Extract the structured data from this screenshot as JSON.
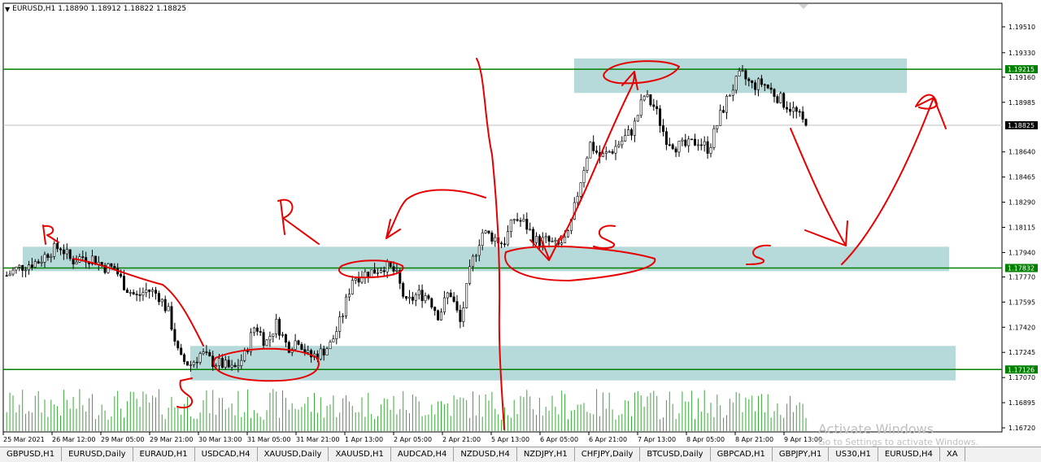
{
  "chart": {
    "symbol_label": "EURUSD,H1",
    "ohlc": [
      "1.18890",
      "1.18912",
      "1.18822",
      "1.18825"
    ]
  },
  "chart_data": {
    "type": "candlestick",
    "symbol": "EURUSD",
    "timeframe": "H1",
    "open": 1.1889,
    "high": 1.18912,
    "low": 1.18822,
    "close": 1.18825,
    "ylim": [
      1.1672,
      1.196
    ],
    "y_ticks": [
      "1.19510",
      "1.19330",
      "1.19160",
      "1.18985",
      "1.18640",
      "1.18465",
      "1.18290",
      "1.18115",
      "1.17940",
      "1.17770",
      "1.17595",
      "1.17420",
      "1.17245",
      "1.17070",
      "1.16895",
      "1.16720"
    ],
    "x_ticks": [
      "25 Mar 2021",
      "26 Mar 12:00",
      "29 Mar 05:00",
      "29 Mar 21:00",
      "30 Mar 13:00",
      "31 Mar 05:00",
      "31 Mar 21:00",
      "1 Apr 13:00",
      "2 Apr 05:00",
      "2 Apr 21:00",
      "5 Apr 13:00",
      "6 Apr 05:00",
      "6 Apr 21:00",
      "7 Apr 13:00",
      "8 Apr 05:00",
      "8 Apr 21:00",
      "9 Apr 13:00"
    ],
    "horizontal_levels": [
      {
        "price": 1.19215,
        "label": "1.19215",
        "color": "#008000"
      },
      {
        "price": 1.17832,
        "label": "1.17832",
        "color": "#008000"
      },
      {
        "price": 1.17126,
        "label": "1.17126",
        "color": "#008000"
      },
      {
        "price": 1.18825,
        "label": "1.18825",
        "color": "#c0c0c0"
      }
    ],
    "zones": [
      {
        "from": 1.1905,
        "to": 1.1929
      },
      {
        "from": 1.1781,
        "to": 1.1798
      },
      {
        "from": 1.1705,
        "to": 1.1729
      }
    ],
    "path": [
      1.1778,
      1.1783,
      1.1786,
      1.1788,
      1.1795,
      1.1798,
      1.1788,
      1.1791,
      1.179,
      1.1784,
      1.1783,
      1.177,
      1.1763,
      1.1768,
      1.1765,
      1.1752,
      1.172,
      1.1716,
      1.1724,
      1.1718,
      1.1716,
      1.1712,
      1.1722,
      1.1744,
      1.1731,
      1.1745,
      1.1728,
      1.1734,
      1.1721,
      1.1724,
      1.173,
      1.1748,
      1.1776,
      1.1779,
      1.1781,
      1.1785,
      1.178,
      1.1758,
      1.1765,
      1.1764,
      1.175,
      1.1768,
      1.1745,
      1.1785,
      1.1808,
      1.1805,
      1.18,
      1.1818,
      1.1814,
      1.1802,
      1.1802,
      1.1798,
      1.1805,
      1.184,
      1.187,
      1.186,
      1.1865,
      1.1872,
      1.188,
      1.1903,
      1.1895,
      1.1874,
      1.1868,
      1.1868,
      1.1872,
      1.1866,
      1.1888,
      1.1906,
      1.1918,
      1.191,
      1.1912,
      1.1905,
      1.1898,
      1.1892,
      1.1882
    ]
  },
  "tabs": [
    "GBPUSD,H1",
    "EURUSD,Daily",
    "EURAUD,H1",
    "USDCAD,H4",
    "XAUUSD,Daily",
    "XAUUSD,H1",
    "AUDCAD,H4",
    "NZDUSD,H4",
    "NZDJPY,H1",
    "CHFJPY,Daily",
    "BTCUSD,Daily",
    "GBPCAD,H1",
    "GBPJPY,H1",
    "US30,H1",
    "EURUSD,H4",
    "XA"
  ],
  "active_tab": "EURUSD,H1",
  "watermark": {
    "title": "Activate Windows",
    "subtitle": "Go to Settings to activate Windows."
  },
  "annotations": {
    "color": "#e60000",
    "letters": [
      "R",
      "R",
      "S",
      "S",
      "S",
      "S"
    ]
  },
  "colors": {
    "level_line": "#008000",
    "zone_fill": "#a9d2d2",
    "volume_bar": "#3aa83a",
    "candle": "#000000",
    "annotation": "#e60000"
  }
}
